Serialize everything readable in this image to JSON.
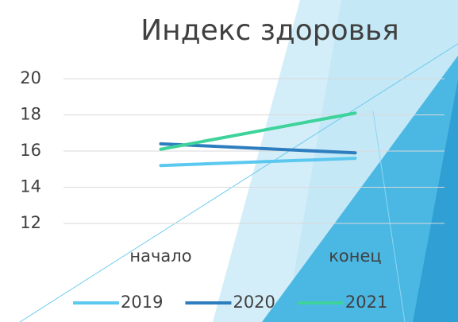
{
  "chart_data": {
    "type": "line",
    "title": "Индекс здоровья",
    "categories": [
      "начало",
      "конец"
    ],
    "series": [
      {
        "name": "2019",
        "color": "#5bc8ef",
        "values": [
          15.2,
          15.6
        ]
      },
      {
        "name": "2020",
        "color": "#2e7ebf",
        "values": [
          16.4,
          15.9
        ]
      },
      {
        "name": "2021",
        "color": "#3dd39a",
        "values": [
          16.1,
          18.1
        ]
      }
    ],
    "ylim": [
      12,
      20
    ],
    "yticks": [
      12,
      14,
      16,
      18,
      20
    ],
    "grid": true
  }
}
